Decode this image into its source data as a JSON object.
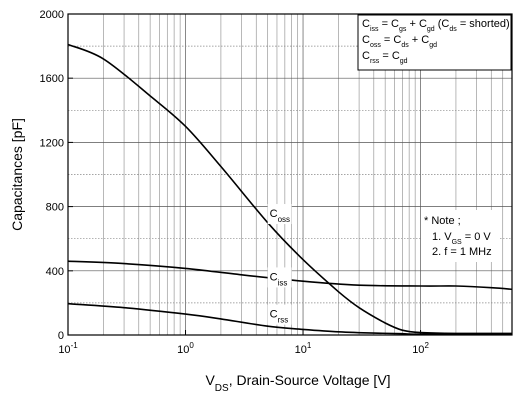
{
  "chart_data": {
    "type": "line",
    "x_scale": "log",
    "xlim": [
      0.1,
      600
    ],
    "ylim": [
      0,
      2000
    ],
    "grid": true,
    "x_ticks": [
      {
        "value": 0.1,
        "base": "10",
        "exp": "-1"
      },
      {
        "value": 1,
        "base": "10",
        "exp": "0"
      },
      {
        "value": 10,
        "base": "10",
        "exp": "1"
      },
      {
        "value": 100,
        "base": "10",
        "exp": "2"
      }
    ],
    "y_ticks": [
      "0",
      "400",
      "800",
      "1200",
      "1600",
      "2000"
    ],
    "xlabel": {
      "main": "V",
      "sub": "DS",
      "rest": ", Drain-Source Voltage [V]"
    },
    "ylabel": "Capacitances [pF]",
    "series": [
      {
        "name": "Coss",
        "label_main": "C",
        "label_sub": "oss",
        "x": [
          0.1,
          0.2,
          0.5,
          1,
          2,
          5,
          10,
          20,
          30,
          50,
          70,
          100,
          200,
          600
        ],
        "y": [
          1810,
          1720,
          1490,
          1300,
          1050,
          700,
          470,
          270,
          170,
          75,
          30,
          15,
          10,
          10
        ]
      },
      {
        "name": "Ciss",
        "label_main": "C",
        "label_sub": "iss",
        "x": [
          0.1,
          0.3,
          1,
          3,
          10,
          30,
          100,
          200,
          400,
          600
        ],
        "y": [
          460,
          445,
          415,
          375,
          335,
          310,
          305,
          305,
          295,
          285
        ]
      },
      {
        "name": "Crss",
        "label_main": "C",
        "label_sub": "rss",
        "x": [
          0.1,
          0.3,
          1,
          2,
          5,
          10,
          20,
          40,
          70,
          100,
          600
        ],
        "y": [
          195,
          170,
          130,
          100,
          55,
          35,
          20,
          12,
          8,
          5,
          5
        ]
      }
    ],
    "legend": {
      "position": "top-right",
      "lines": [
        [
          [
            "C",
            ""
          ],
          [
            "iss",
            "sub"
          ],
          [
            " = C",
            ""
          ],
          [
            "gs",
            "sub"
          ],
          [
            " + C",
            ""
          ],
          [
            "gd",
            "sub"
          ],
          [
            " (C",
            ""
          ],
          [
            "ds",
            "sub"
          ],
          [
            " = shorted)",
            ""
          ]
        ],
        [
          [
            "C",
            ""
          ],
          [
            "oss",
            "sub"
          ],
          [
            " = C",
            ""
          ],
          [
            "ds",
            "sub"
          ],
          [
            " + C",
            ""
          ],
          [
            "gd",
            "sub"
          ]
        ],
        [
          [
            "C",
            ""
          ],
          [
            "rss",
            "sub"
          ],
          [
            " = C",
            ""
          ],
          [
            "gd",
            "sub"
          ]
        ]
      ]
    },
    "note": {
      "title": "* Note ;",
      "lines": [
        [
          [
            "1. V",
            ""
          ],
          [
            "GS",
            "sub"
          ],
          [
            " = 0 V",
            ""
          ]
        ],
        [
          [
            "2. f = 1 MHz",
            ""
          ]
        ]
      ]
    }
  }
}
